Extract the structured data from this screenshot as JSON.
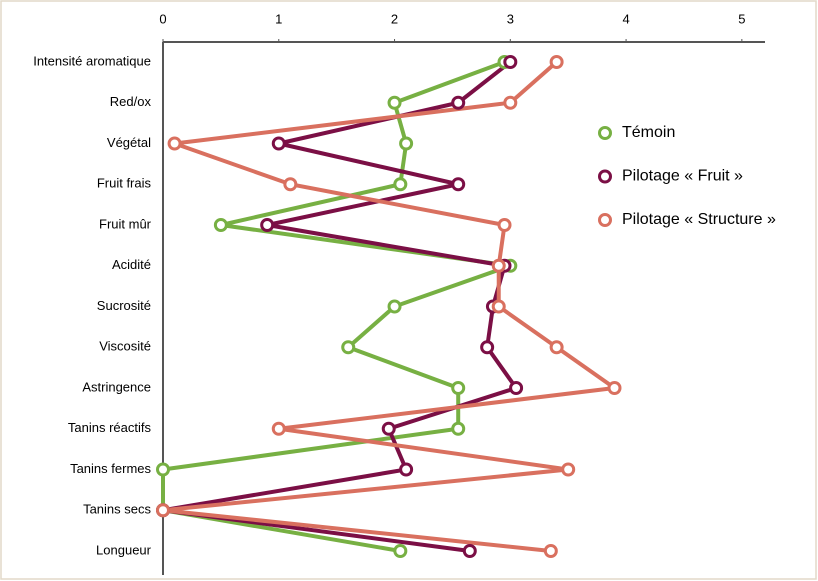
{
  "chart_data": {
    "type": "line",
    "orientation": "horizontal",
    "categories": [
      "Intensité aromatique",
      "Red/ox",
      "Végétal",
      "Fruit frais",
      "Fruit mûr",
      "Acidité",
      "Sucrosité",
      "Viscosité",
      "Astringence",
      "Tanins réactifs",
      "Tanins fermes",
      "Tanins secs",
      "Longueur"
    ],
    "series": [
      {
        "name": "Témoin",
        "color": "#77b043",
        "values": [
          2.95,
          2.0,
          2.1,
          2.05,
          0.5,
          3.0,
          2.0,
          1.6,
          2.55,
          2.55,
          0,
          0,
          2.05
        ]
      },
      {
        "name": "Pilotage « Fruit »",
        "color": "#7b0f45",
        "values": [
          3.0,
          2.55,
          1.0,
          2.55,
          0.9,
          2.95,
          2.85,
          2.8,
          3.05,
          1.95,
          2.1,
          0,
          2.65
        ]
      },
      {
        "name": "Pilotage « Structure »",
        "color": "#d9705f",
        "values": [
          3.4,
          3.0,
          0.1,
          1.1,
          2.95,
          2.9,
          2.9,
          3.4,
          3.9,
          1.0,
          3.5,
          0,
          3.35
        ]
      }
    ],
    "xlim": [
      0,
      5.2
    ],
    "xticks": [
      0,
      1,
      2,
      3,
      4,
      5
    ],
    "grid": false,
    "legend": "right"
  }
}
